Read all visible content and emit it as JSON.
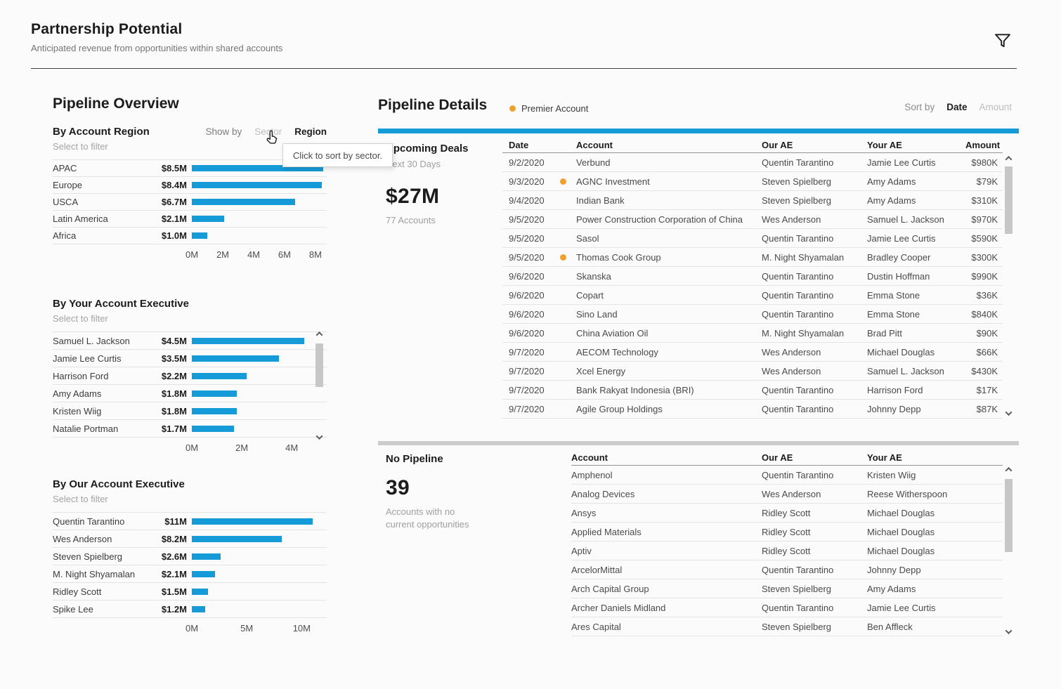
{
  "colors": {
    "bar_blue": "#149bd8",
    "premier_orange": "#f0a12c"
  },
  "page": {
    "title": "Partnership Potential",
    "subtitle": "Anticipated revenue from opportunities within shared accounts"
  },
  "overview": {
    "title": "Pipeline Overview",
    "show_by": {
      "label": "Show by",
      "options": [
        {
          "label": "Sector",
          "selected": false
        },
        {
          "label": "Region",
          "selected": true
        }
      ]
    },
    "tooltip": "Click to sort by sector.",
    "charts": [
      {
        "type": "bar",
        "title": "By Account Region",
        "subtitle": "Select to filter",
        "plot_max": 8.73,
        "ticks": [
          [
            0,
            "0M"
          ],
          [
            2,
            "2M"
          ],
          [
            4,
            "4M"
          ],
          [
            6,
            "6M"
          ],
          [
            8,
            "8M"
          ]
        ],
        "rows": [
          [
            "APAC",
            "$8.5M",
            8.5
          ],
          [
            "Europe",
            "$8.4M",
            8.4
          ],
          [
            "USCA",
            "$6.7M",
            6.7
          ],
          [
            "Latin America",
            "$2.1M",
            2.1
          ],
          [
            "Africa",
            "$1.0M",
            1.0
          ]
        ]
      },
      {
        "type": "bar",
        "title": "By Your Account Executive",
        "subtitle": "Select to filter",
        "plot_max": 4.84,
        "ticks": [
          [
            0,
            "0M"
          ],
          [
            2,
            "2M"
          ],
          [
            4,
            "4M"
          ]
        ],
        "rows": [
          [
            "Samuel L. Jackson",
            "$4.5M",
            4.5
          ],
          [
            "Jamie Lee Curtis",
            "$3.5M",
            3.5
          ],
          [
            "Harrison Ford",
            "$2.2M",
            2.2
          ],
          [
            "Amy Adams",
            "$1.8M",
            1.8
          ],
          [
            "Kristen Wiig",
            "$1.8M",
            1.8
          ],
          [
            "Natalie Portman",
            "$1.7M",
            1.7
          ]
        ]
      },
      {
        "type": "bar",
        "title": "By Our Account Executive",
        "subtitle": "Select to filter",
        "plot_max": 12.28,
        "ticks": [
          [
            0,
            "0M"
          ],
          [
            5,
            "5M"
          ],
          [
            10,
            "10M"
          ]
        ],
        "rows": [
          [
            "Quentin Tarantino",
            "$11M",
            11.0
          ],
          [
            "Wes Anderson",
            "$8.2M",
            8.2
          ],
          [
            "Steven Spielberg",
            "$2.6M",
            2.6
          ],
          [
            "M. Night Shyamalan",
            "$2.1M",
            2.1
          ],
          [
            "Ridley Scott",
            "$1.5M",
            1.5
          ],
          [
            "Spike Lee",
            "$1.2M",
            1.2
          ]
        ]
      }
    ]
  },
  "details": {
    "title": "Pipeline Details",
    "legend_label": "Premier Account",
    "sort": {
      "label": "Sort by",
      "options": [
        {
          "label": "Date",
          "selected": true
        },
        {
          "label": "Amount",
          "selected": false
        }
      ]
    },
    "upcoming": {
      "title": "Upcoming Deals",
      "subtitle": "Next 30 Days",
      "value": "$27M",
      "caption": "77 Accounts"
    },
    "deals_table": {
      "columns": [
        "Date",
        "Account",
        "Our AE",
        "Your AE",
        "Amount"
      ],
      "rows": [
        [
          "9/2/2020",
          false,
          "Verbund",
          "Quentin Tarantino",
          "Jamie Lee Curtis",
          "$980K"
        ],
        [
          "9/3/2020",
          true,
          "AGNC Investment",
          "Steven Spielberg",
          "Amy Adams",
          "$79K"
        ],
        [
          "9/4/2020",
          false,
          "Indian Bank",
          "Steven Spielberg",
          "Amy Adams",
          "$310K"
        ],
        [
          "9/5/2020",
          false,
          "Power Construction Corporation of China",
          "Wes Anderson",
          "Samuel L. Jackson",
          "$970K"
        ],
        [
          "9/5/2020",
          false,
          "Sasol",
          "Quentin Tarantino",
          "Jamie Lee Curtis",
          "$590K"
        ],
        [
          "9/5/2020",
          true,
          "Thomas Cook Group",
          "M. Night Shyamalan",
          "Bradley Cooper",
          "$300K"
        ],
        [
          "9/6/2020",
          false,
          "Skanska",
          "Quentin Tarantino",
          "Dustin Hoffman",
          "$990K"
        ],
        [
          "9/6/2020",
          false,
          "Copart",
          "Quentin Tarantino",
          "Emma Stone",
          "$36K"
        ],
        [
          "9/6/2020",
          false,
          "Sino Land",
          "Quentin Tarantino",
          "Emma Stone",
          "$840K"
        ],
        [
          "9/6/2020",
          false,
          "China Aviation Oil",
          "M. Night Shyamalan",
          "Brad Pitt",
          "$90K"
        ],
        [
          "9/7/2020",
          false,
          "AECOM Technology",
          "Wes Anderson",
          "Michael Douglas",
          "$66K"
        ],
        [
          "9/7/2020",
          false,
          "Xcel Energy",
          "Wes Anderson",
          "Samuel L. Jackson",
          "$430K"
        ],
        [
          "9/7/2020",
          false,
          "Bank Rakyat Indonesia (BRI)",
          "Quentin Tarantino",
          "Harrison Ford",
          "$17K"
        ],
        [
          "9/7/2020",
          false,
          "Agile Group Holdings",
          "Quentin Tarantino",
          "Johnny Depp",
          "$87K"
        ]
      ]
    },
    "no_pipeline": {
      "title": "No Pipeline",
      "value": "39",
      "caption_line1": "Accounts with no",
      "caption_line2": "current opportunities",
      "table": {
        "columns": [
          "Account",
          "Our AE",
          "Your AE"
        ],
        "rows": [
          [
            "Amphenol",
            "Quentin Tarantino",
            "Kristen Wiig"
          ],
          [
            "Analog Devices",
            "Wes Anderson",
            "Reese Witherspoon"
          ],
          [
            "Ansys",
            "Ridley Scott",
            "Michael Douglas"
          ],
          [
            "Applied Materials",
            "Ridley Scott",
            "Michael Douglas"
          ],
          [
            "Aptiv",
            "Ridley Scott",
            "Michael Douglas"
          ],
          [
            "ArcelorMittal",
            "Quentin Tarantino",
            "Johnny Depp"
          ],
          [
            "Arch Capital Group",
            "Steven Spielberg",
            "Amy Adams"
          ],
          [
            "Archer Daniels Midland",
            "Quentin Tarantino",
            "Jamie Lee Curtis"
          ],
          [
            "Ares Capital",
            "Steven Spielberg",
            "Ben Affleck"
          ]
        ]
      }
    }
  }
}
